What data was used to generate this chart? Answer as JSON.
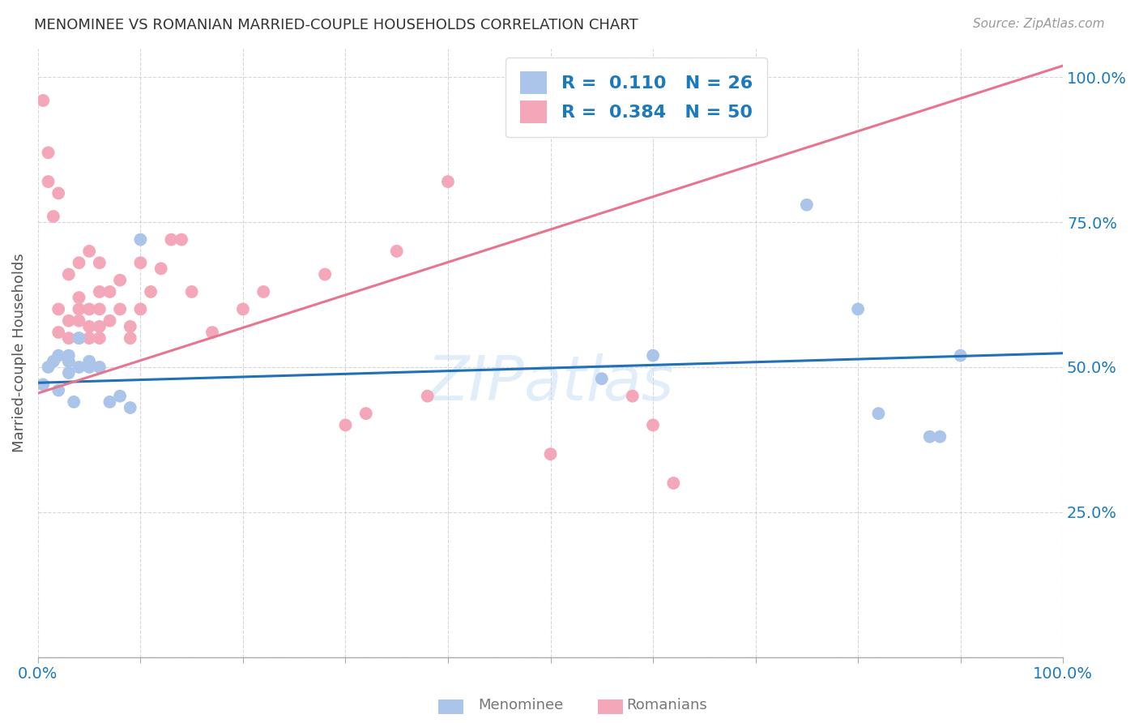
{
  "title": "MENOMINEE VS ROMANIAN MARRIED-COUPLE HOUSEHOLDS CORRELATION CHART",
  "source": "Source: ZipAtlas.com",
  "ylabel": "Married-couple Households",
  "menominee_R": "0.110",
  "menominee_N": "26",
  "romanian_R": "0.384",
  "romanian_N": "50",
  "menominee_color": "#aac4ea",
  "romanian_color": "#f4a7b9",
  "menominee_line_color": "#2170b8",
  "romanian_line_color": "#e8758e",
  "legend_text_color": "#1a7abf",
  "watermark": "ZIPatlas",
  "menominee_x": [
    0.005,
    0.01,
    0.015,
    0.02,
    0.02,
    0.03,
    0.03,
    0.03,
    0.035,
    0.04,
    0.04,
    0.05,
    0.05,
    0.06,
    0.07,
    0.08,
    0.09,
    0.1,
    0.55,
    0.6,
    0.75,
    0.8,
    0.82,
    0.87,
    0.88,
    0.9
  ],
  "menominee_y": [
    0.47,
    0.5,
    0.51,
    0.46,
    0.52,
    0.49,
    0.51,
    0.52,
    0.44,
    0.5,
    0.55,
    0.5,
    0.51,
    0.5,
    0.44,
    0.45,
    0.43,
    0.72,
    0.48,
    0.52,
    0.78,
    0.6,
    0.42,
    0.38,
    0.38,
    0.52
  ],
  "romanian_x": [
    0.005,
    0.01,
    0.01,
    0.015,
    0.02,
    0.02,
    0.02,
    0.03,
    0.03,
    0.03,
    0.04,
    0.04,
    0.04,
    0.04,
    0.04,
    0.05,
    0.05,
    0.05,
    0.05,
    0.06,
    0.06,
    0.06,
    0.06,
    0.06,
    0.07,
    0.07,
    0.08,
    0.08,
    0.09,
    0.09,
    0.1,
    0.1,
    0.11,
    0.12,
    0.13,
    0.14,
    0.15,
    0.17,
    0.2,
    0.22,
    0.28,
    0.3,
    0.32,
    0.35,
    0.38,
    0.4,
    0.5,
    0.58,
    0.6,
    0.62
  ],
  "romanian_y": [
    0.96,
    0.82,
    0.87,
    0.76,
    0.56,
    0.6,
    0.8,
    0.55,
    0.58,
    0.66,
    0.55,
    0.58,
    0.6,
    0.62,
    0.68,
    0.55,
    0.57,
    0.6,
    0.7,
    0.55,
    0.57,
    0.6,
    0.63,
    0.68,
    0.58,
    0.63,
    0.6,
    0.65,
    0.55,
    0.57,
    0.6,
    0.68,
    0.63,
    0.67,
    0.72,
    0.72,
    0.63,
    0.56,
    0.6,
    0.63,
    0.66,
    0.4,
    0.42,
    0.7,
    0.45,
    0.82,
    0.35,
    0.45,
    0.4,
    0.3
  ],
  "xlim": [
    0.0,
    1.0
  ],
  "ylim": [
    0.0,
    1.05
  ],
  "grid_color": "#cccccc",
  "menominee_trend_x": [
    0.0,
    1.0
  ],
  "menominee_trend_y": [
    0.473,
    0.524
  ],
  "romanian_trend_x": [
    0.0,
    1.0
  ],
  "romanian_trend_y": [
    0.455,
    1.02
  ]
}
